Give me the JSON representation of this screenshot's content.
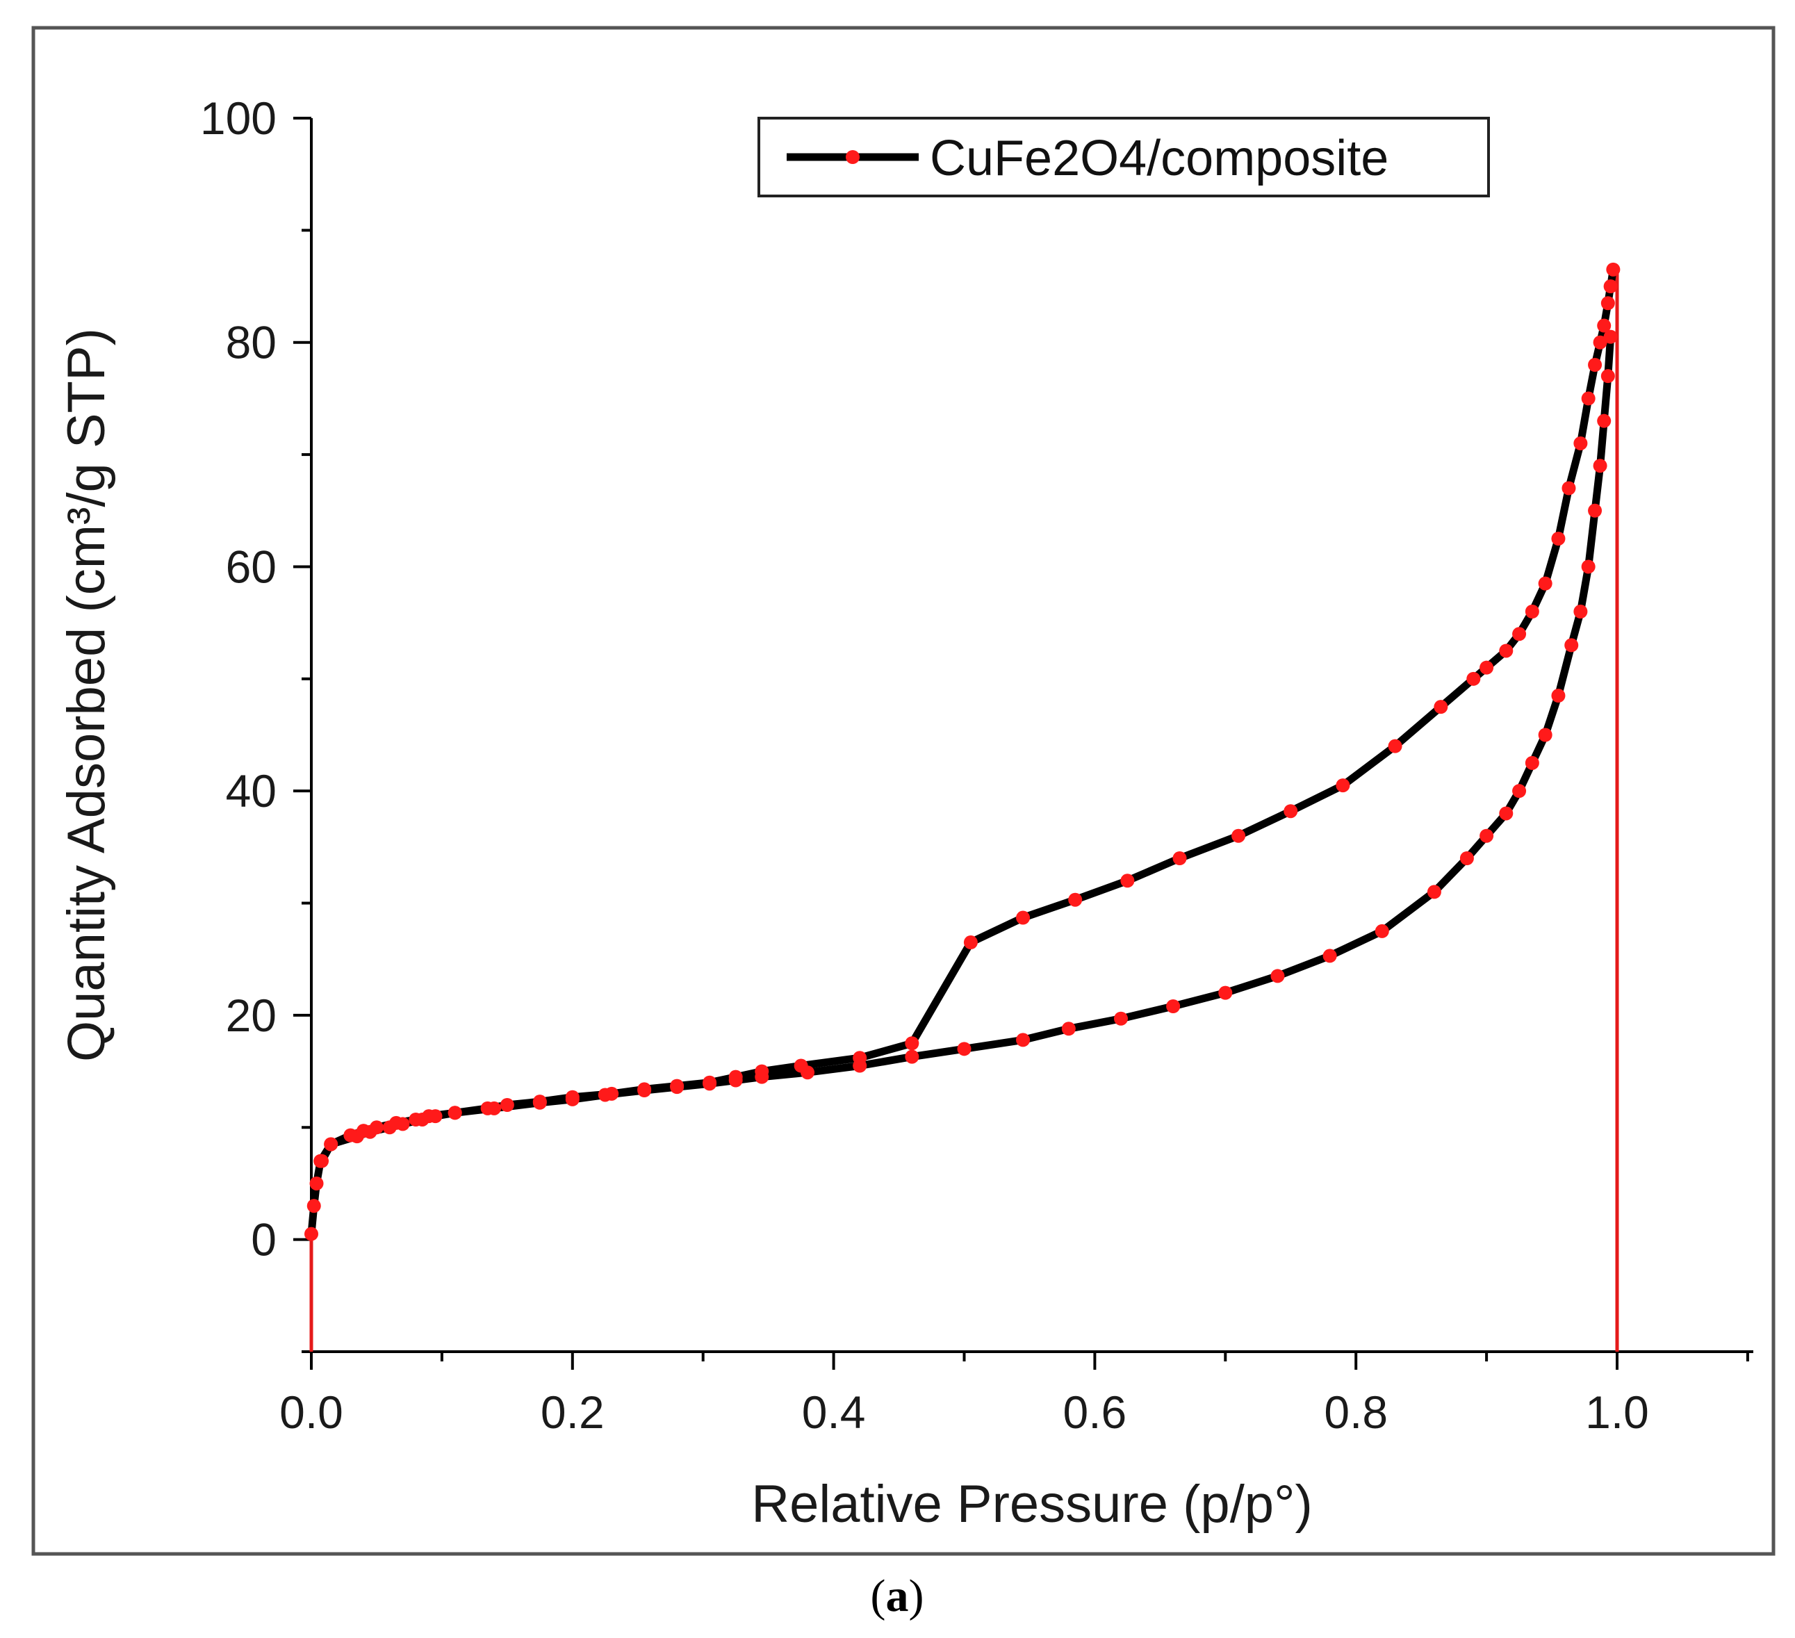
{
  "chart_data": {
    "type": "line",
    "title": "",
    "xlabel": "Relative Pressure (p/p°)",
    "ylabel": "Quantity Adsorbed (cm³/g STP)",
    "xlim": [
      0,
      1.1
    ],
    "ylim": [
      -10,
      100
    ],
    "x_ticks": [
      0.0,
      0.2,
      0.4,
      0.6,
      0.8,
      1.0
    ],
    "x_tick_labels": [
      "0.0",
      "0.2",
      "0.4",
      "0.6",
      "0.8",
      "1.0"
    ],
    "y_ticks": [
      0,
      20,
      40,
      60,
      80,
      100
    ],
    "y_tick_labels": [
      "0",
      "20",
      "40",
      "60",
      "80",
      "100"
    ],
    "legend_position": "top-right",
    "series": [
      {
        "name": "CuFe2O4/composite",
        "line_color": "#000000",
        "marker_color": "#ff1a1a",
        "adsorption": {
          "x": [
            0.0,
            0.002,
            0.004,
            0.007,
            0.015,
            0.035,
            0.045,
            0.06,
            0.07,
            0.085,
            0.095,
            0.11,
            0.14,
            0.175,
            0.2,
            0.225,
            0.255,
            0.28,
            0.305,
            0.325,
            0.345,
            0.38,
            0.42,
            0.46,
            0.5,
            0.545,
            0.58,
            0.62,
            0.66,
            0.7,
            0.74,
            0.78,
            0.82,
            0.86,
            0.885,
            0.9,
            0.915,
            0.925,
            0.935,
            0.945,
            0.955,
            0.965,
            0.972,
            0.978,
            0.983,
            0.987,
            0.99,
            0.993,
            0.995
          ],
          "y": [
            0.5,
            3,
            5,
            7,
            8.5,
            9.2,
            9.6,
            10.0,
            10.3,
            10.7,
            11.0,
            11.3,
            11.7,
            12.2,
            12.5,
            12.9,
            13.3,
            13.6,
            13.9,
            14.2,
            14.5,
            14.9,
            15.5,
            16.3,
            17.0,
            17.8,
            18.8,
            19.7,
            20.8,
            22.0,
            23.5,
            25.3,
            27.5,
            31.0,
            34.0,
            36.0,
            38.0,
            40.0,
            42.5,
            45.0,
            48.5,
            53.0,
            56.0,
            60.0,
            65.0,
            69.0,
            73.0,
            77.0,
            80.5
          ]
        },
        "desorption": {
          "x": [
            0.997,
            0.995,
            0.993,
            0.99,
            0.987,
            0.983,
            0.978,
            0.972,
            0.963,
            0.955,
            0.945,
            0.935,
            0.925,
            0.915,
            0.9,
            0.89,
            0.865,
            0.83,
            0.79,
            0.75,
            0.71,
            0.665,
            0.625,
            0.585,
            0.545,
            0.505,
            0.46,
            0.42,
            0.375,
            0.345,
            0.325,
            0.305,
            0.28,
            0.255,
            0.23,
            0.2,
            0.175,
            0.15,
            0.135,
            0.11,
            0.09,
            0.08,
            0.065,
            0.05,
            0.04,
            0.03,
            0.015,
            0.008
          ],
          "y": [
            86.5,
            85.0,
            83.5,
            81.5,
            80.0,
            78.0,
            75.0,
            71.0,
            67.0,
            62.5,
            58.5,
            56.0,
            54.0,
            52.5,
            51.0,
            50.0,
            47.5,
            44.0,
            40.5,
            38.2,
            36.0,
            34.0,
            32.0,
            30.3,
            28.7,
            26.5,
            17.5,
            16.2,
            15.5,
            15.0,
            14.5,
            14.0,
            13.7,
            13.4,
            13.0,
            12.7,
            12.3,
            12.0,
            11.7,
            11.3,
            11.0,
            10.7,
            10.4,
            10.0,
            9.7,
            9.3,
            8.5,
            7.0
          ]
        }
      }
    ],
    "vertical_lines": [
      {
        "x": 0.0,
        "y_from": -10,
        "y_to": 0.5,
        "color": "#e51a1a"
      },
      {
        "x": 1.0,
        "y_from": -10,
        "y_to": 86.5,
        "color": "#e51a1a"
      }
    ]
  },
  "caption": {
    "open": "(",
    "letter": "a",
    "close": ")"
  }
}
